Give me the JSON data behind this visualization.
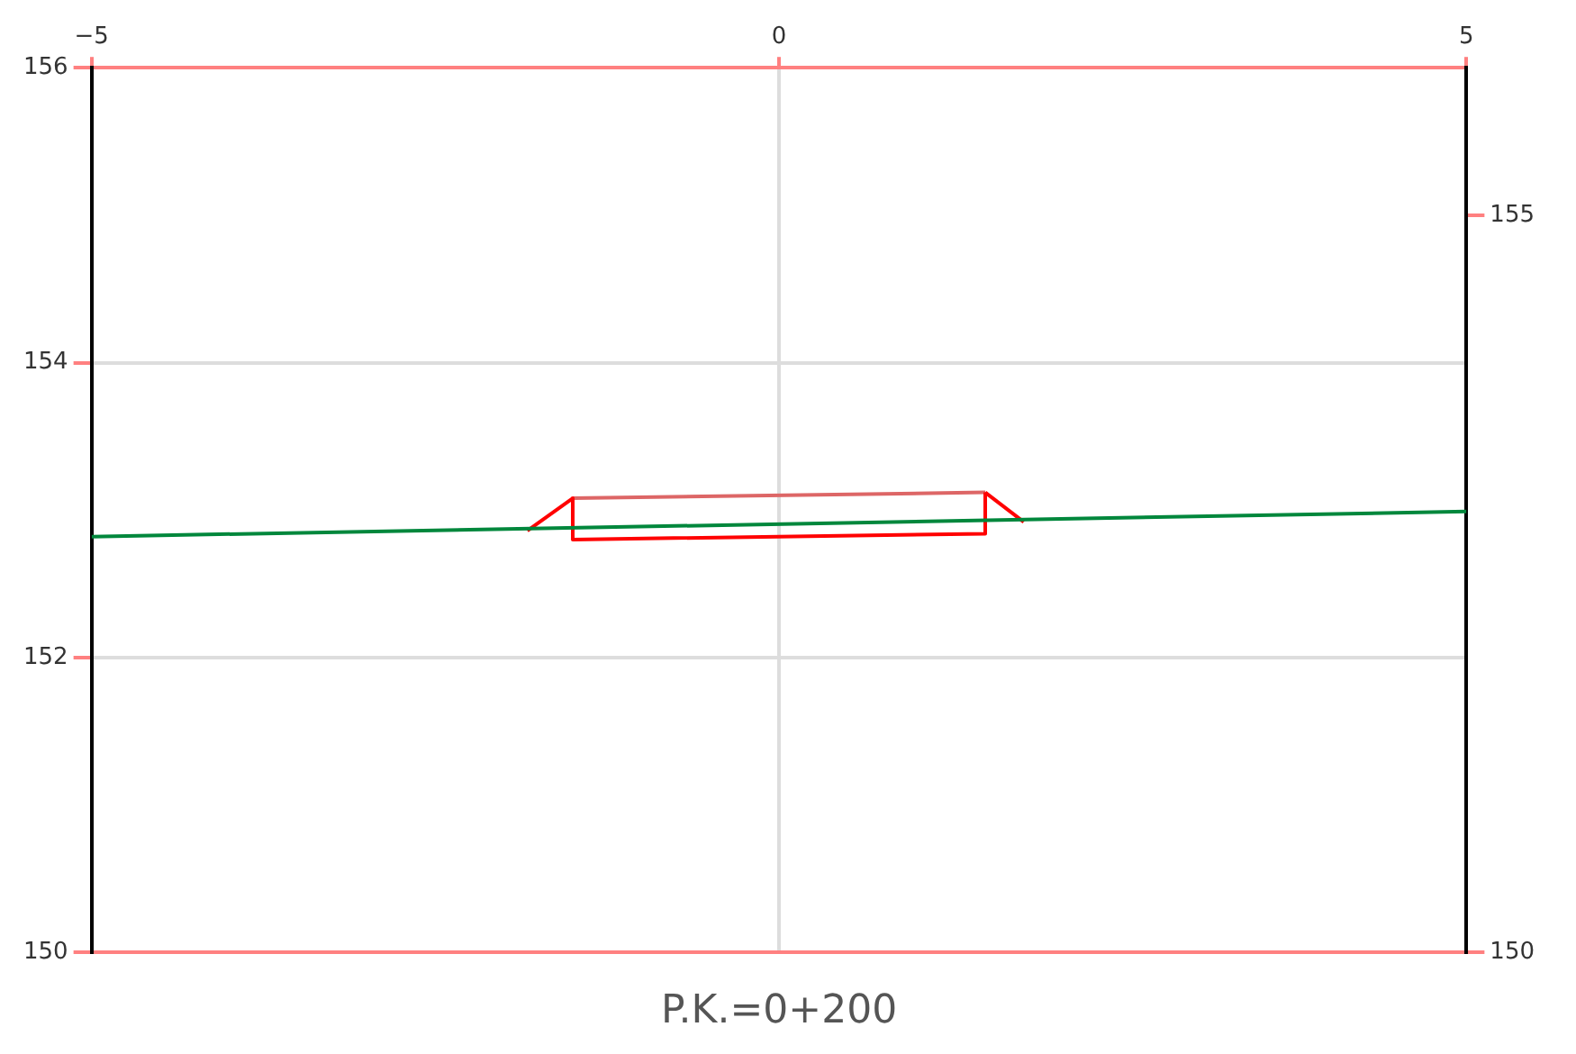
{
  "chart_data": {
    "type": "line",
    "title": "P.K.=0+200",
    "xlim": [
      -5,
      5
    ],
    "xticks": [
      -5,
      0,
      5
    ],
    "ylim": [
      150,
      156
    ],
    "yticks": [
      150,
      152,
      154,
      156
    ],
    "y2lim": [
      150,
      156
    ],
    "y2ticks": [
      150,
      155
    ],
    "grid": true,
    "legend": false,
    "marker": "none",
    "line_style": "solid",
    "series": [
      {
        "color": "#00873c",
        "x": [
          -5,
          5
        ],
        "values": [
          152.82,
          152.99
        ]
      },
      {
        "color": "#ff0000",
        "x": [
          -1.83,
          -1.5
        ],
        "values": [
          152.86,
          153.08
        ]
      },
      {
        "color": "#ff0000",
        "x": [
          1.5,
          1.78
        ],
        "values": [
          153.12,
          152.92
        ]
      },
      {
        "color": "#ff0000",
        "x": [
          -1.5,
          -1.5,
          1.5,
          1.5
        ],
        "values": [
          153.08,
          152.8,
          152.84,
          153.12
        ]
      },
      {
        "color": "#dd6666",
        "x": [
          -1.5,
          1.5
        ],
        "values": [
          153.08,
          153.12
        ]
      }
    ]
  }
}
